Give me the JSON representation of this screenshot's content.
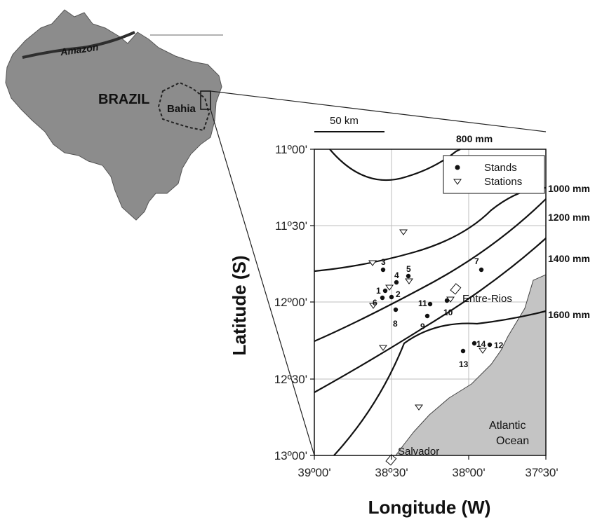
{
  "brazil_map": {
    "country_label": "BRAZIL",
    "state_label": "Bahia",
    "river_label": "Amazon"
  },
  "scale_bar": {
    "label": "50 km"
  },
  "map": {
    "lon_ticks": [
      "39º00'",
      "38º30'",
      "38º00'",
      "37º30'"
    ],
    "lat_ticks": [
      "11º00'",
      "11º30'",
      "12º00'",
      "12º30'",
      "13º00'"
    ],
    "x_axis_title": "Longitude (W)",
    "y_axis_title": "Latitude (S)",
    "isohyets": [
      "800 mm",
      "1000 mm",
      "1200 mm",
      "1400 mm",
      "1600 mm"
    ],
    "cities": [
      "Entre-Rios",
      "Salvador"
    ],
    "ocean_label_line1": "Atlantic",
    "ocean_label_line2": "Ocean",
    "legend": {
      "stands": "Stands",
      "stations": "Stations"
    },
    "stand_labels": [
      "1",
      "2",
      "3",
      "4",
      "5",
      "6",
      "7",
      "8",
      "9",
      "10",
      "11",
      "12",
      "13",
      "14"
    ],
    "colors": {
      "land": "#8c8c8c",
      "ocean_fill": "#c4c4c4",
      "ink": "#111111",
      "grid": "#bdbdbd"
    }
  }
}
